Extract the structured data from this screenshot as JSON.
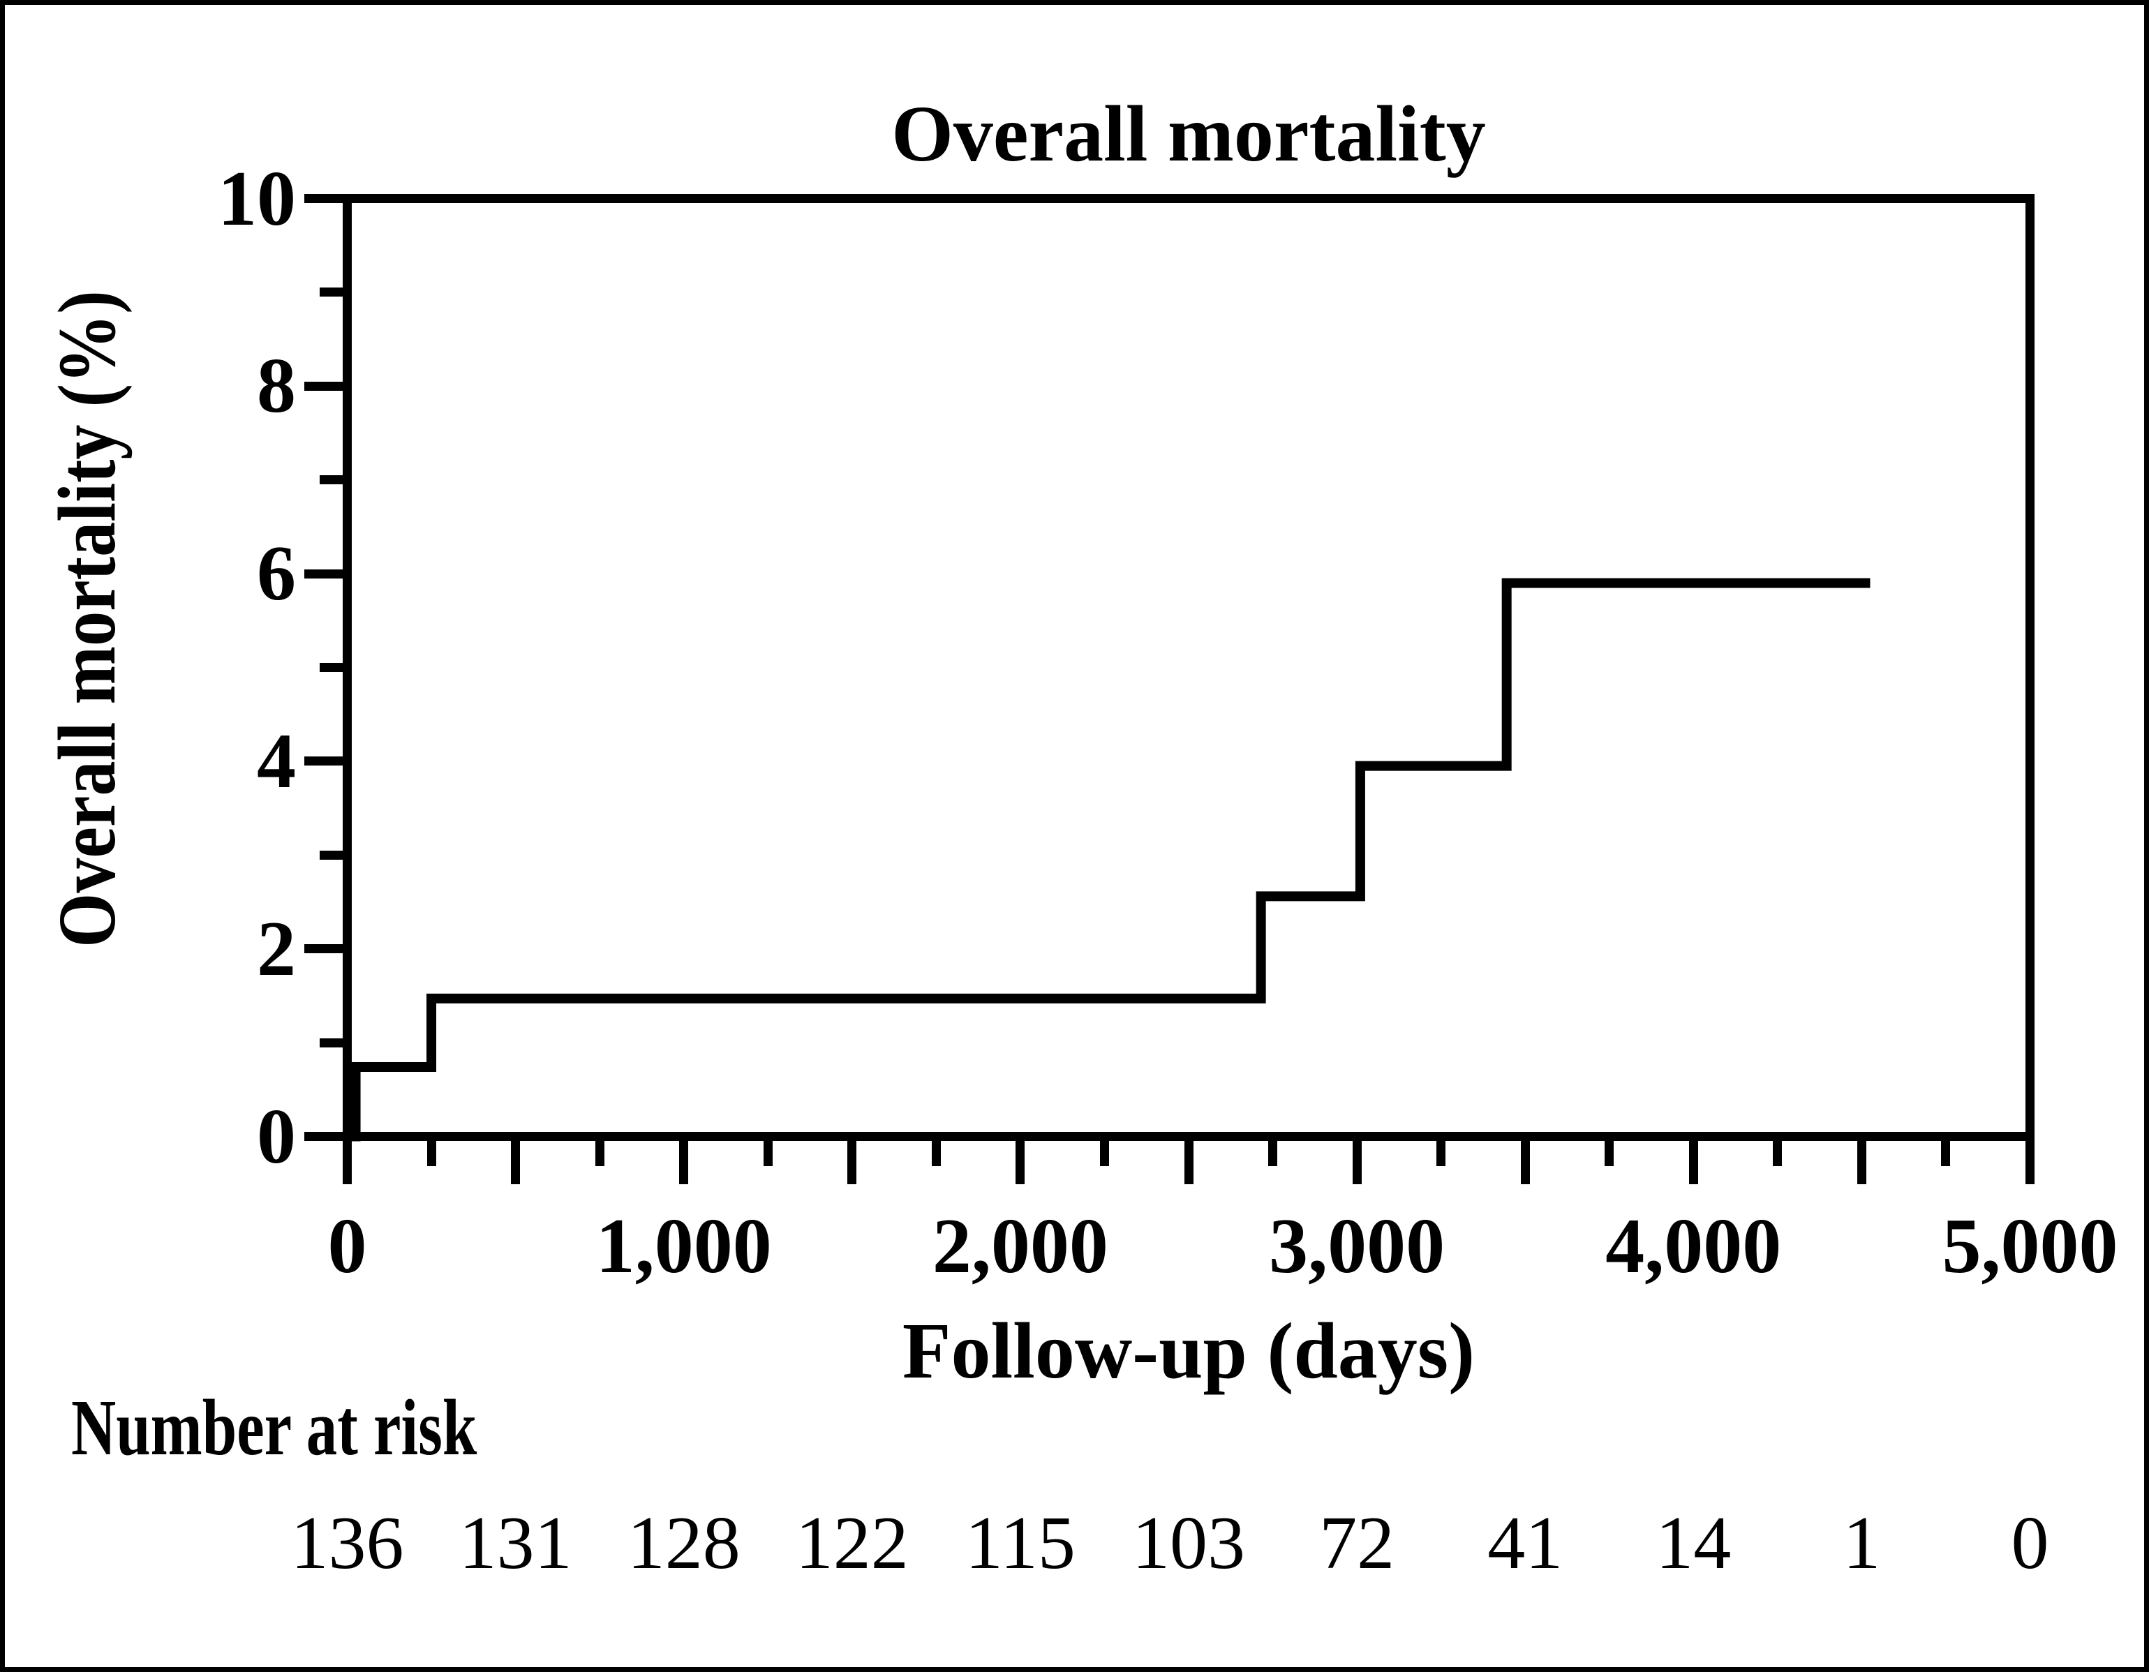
{
  "figure": {
    "title": "Overall mortality"
  },
  "y_axis": {
    "title": "Overall mortality (%)",
    "min": 0,
    "max": 10,
    "major_tick_values": [
      0,
      2,
      4,
      6,
      8,
      10
    ],
    "major_tick_labels": [
      "0",
      "2",
      "4",
      "6",
      "8",
      "10"
    ],
    "minor_tick_values": [
      1,
      3,
      5,
      7,
      9
    ]
  },
  "x_axis": {
    "title": "Follow-up (days)",
    "min": 0,
    "max": 5000,
    "major_tick_values": [
      0,
      1000,
      2000,
      3000,
      4000,
      5000
    ],
    "major_tick_labels": [
      "0",
      "1,000",
      "2,000",
      "3,000",
      "4,000",
      "5,000"
    ],
    "long_tick_step": 500,
    "short_tick_step": 250
  },
  "risk_table": {
    "heading": "Number at risk",
    "times": [
      0,
      500,
      1000,
      1500,
      2000,
      2500,
      3000,
      3500,
      4000,
      4500,
      5000
    ],
    "counts": [
      "136",
      "131",
      "128",
      "122",
      "115",
      "103",
      "72",
      "41",
      "14",
      "1",
      "0"
    ]
  },
  "chart_data": {
    "type": "line",
    "subtype": "kaplan-meier-step",
    "title": "Overall mortality",
    "xlabel": "Follow-up (days)",
    "ylabel": "Overall mortality (%)",
    "xlim": [
      0,
      5000
    ],
    "ylim": [
      0,
      10
    ],
    "grid": false,
    "legend": false,
    "series": [
      {
        "name": "Overall mortality",
        "step": "after",
        "points_x": [
          0,
          25,
          250,
          2715,
          3010,
          3445,
          4525
        ],
        "points_y": [
          0,
          0.74,
          1.47,
          2.56,
          3.95,
          5.9,
          5.9
        ]
      }
    ],
    "number_at_risk": {
      "times": [
        0,
        500,
        1000,
        1500,
        2000,
        2500,
        3000,
        3500,
        4000,
        4500,
        5000
      ],
      "counts": [
        136,
        131,
        128,
        122,
        115,
        103,
        72,
        41,
        14,
        1,
        0
      ]
    }
  },
  "colors": {
    "foreground": "#000000",
    "background": "#ffffff"
  }
}
